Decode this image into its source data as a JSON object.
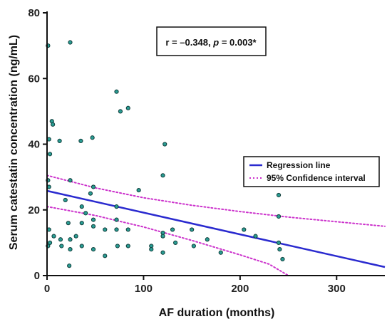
{
  "chart_data": {
    "type": "scatter",
    "xlabel": "AF duration (months)",
    "ylabel": "Serum catestatin concentration (ng/mL)",
    "xlim": [
      0,
      350
    ],
    "ylim": [
      0,
      80
    ],
    "xticks": [
      0,
      100,
      200,
      300
    ],
    "yticks": [
      0,
      20,
      40,
      60,
      80
    ],
    "annotation": {
      "prefix": "r = –0.348, ",
      "p_symbol": "p",
      "suffix": " = 0.003*"
    },
    "legend": {
      "position": "right",
      "items": [
        {
          "label": "Regression line",
          "color": "#2a2acf",
          "style": "solid"
        },
        {
          "label": "95% Confidence interval",
          "color": "#cc33cc",
          "style": "dotted"
        }
      ]
    },
    "colors": {
      "points": "#2a9d94",
      "regression": "#2a2acf",
      "ci": "#cc33cc",
      "axis": "#111111"
    },
    "regression": {
      "x": [
        0,
        350
      ],
      "y": [
        25.8,
        2.6
      ]
    },
    "ci_upper": {
      "x": [
        0,
        50,
        100,
        150,
        200,
        250,
        300,
        350
      ],
      "y": [
        30.5,
        26.7,
        23.7,
        21.4,
        19.5,
        17.8,
        16.4,
        15.0
      ]
    },
    "ci_lower": {
      "x": [
        0,
        50,
        100,
        150,
        200,
        230,
        250
      ],
      "y": [
        21.0,
        18.3,
        14.8,
        10.7,
        6.3,
        3.5,
        0.0
      ]
    },
    "points": [
      {
        "x": 1,
        "y": 70
      },
      {
        "x": 2,
        "y": 41.5
      },
      {
        "x": 3,
        "y": 37
      },
      {
        "x": 2,
        "y": 27
      },
      {
        "x": 1,
        "y": 29
      },
      {
        "x": 2,
        "y": 14
      },
      {
        "x": 1,
        "y": 9
      },
      {
        "x": 3,
        "y": 10
      },
      {
        "x": 5,
        "y": 47
      },
      {
        "x": 6,
        "y": 46
      },
      {
        "x": 7,
        "y": 12
      },
      {
        "x": 13,
        "y": 41
      },
      {
        "x": 14,
        "y": 11
      },
      {
        "x": 15,
        "y": 9
      },
      {
        "x": 19,
        "y": 23
      },
      {
        "x": 24,
        "y": 71
      },
      {
        "x": 24,
        "y": 29
      },
      {
        "x": 22,
        "y": 16
      },
      {
        "x": 24,
        "y": 11
      },
      {
        "x": 24,
        "y": 8
      },
      {
        "x": 23,
        "y": 3
      },
      {
        "x": 30,
        "y": 12
      },
      {
        "x": 35,
        "y": 41
      },
      {
        "x": 36,
        "y": 21
      },
      {
        "x": 36,
        "y": 16
      },
      {
        "x": 36,
        "y": 9
      },
      {
        "x": 40,
        "y": 19
      },
      {
        "x": 45,
        "y": 25
      },
      {
        "x": 47,
        "y": 42
      },
      {
        "x": 48,
        "y": 27
      },
      {
        "x": 48,
        "y": 17
      },
      {
        "x": 48,
        "y": 15
      },
      {
        "x": 48,
        "y": 8
      },
      {
        "x": 60,
        "y": 14
      },
      {
        "x": 60,
        "y": 6
      },
      {
        "x": 72,
        "y": 56
      },
      {
        "x": 72,
        "y": 21
      },
      {
        "x": 72,
        "y": 17
      },
      {
        "x": 72,
        "y": 14
      },
      {
        "x": 73,
        "y": 9
      },
      {
        "x": 76,
        "y": 50
      },
      {
        "x": 84,
        "y": 51
      },
      {
        "x": 84,
        "y": 14
      },
      {
        "x": 84,
        "y": 9
      },
      {
        "x": 95,
        "y": 26
      },
      {
        "x": 108,
        "y": 9
      },
      {
        "x": 108,
        "y": 8
      },
      {
        "x": 120,
        "y": 30.5
      },
      {
        "x": 120,
        "y": 13
      },
      {
        "x": 120,
        "y": 12
      },
      {
        "x": 120,
        "y": 7
      },
      {
        "x": 122,
        "y": 40
      },
      {
        "x": 130,
        "y": 14
      },
      {
        "x": 133,
        "y": 10
      },
      {
        "x": 150,
        "y": 14
      },
      {
        "x": 152,
        "y": 9
      },
      {
        "x": 166,
        "y": 11
      },
      {
        "x": 180,
        "y": 7
      },
      {
        "x": 204,
        "y": 14
      },
      {
        "x": 216,
        "y": 12
      },
      {
        "x": 240,
        "y": 24.5
      },
      {
        "x": 240,
        "y": 18
      },
      {
        "x": 240,
        "y": 10
      },
      {
        "x": 241,
        "y": 8
      },
      {
        "x": 244,
        "y": 5
      }
    ]
  }
}
